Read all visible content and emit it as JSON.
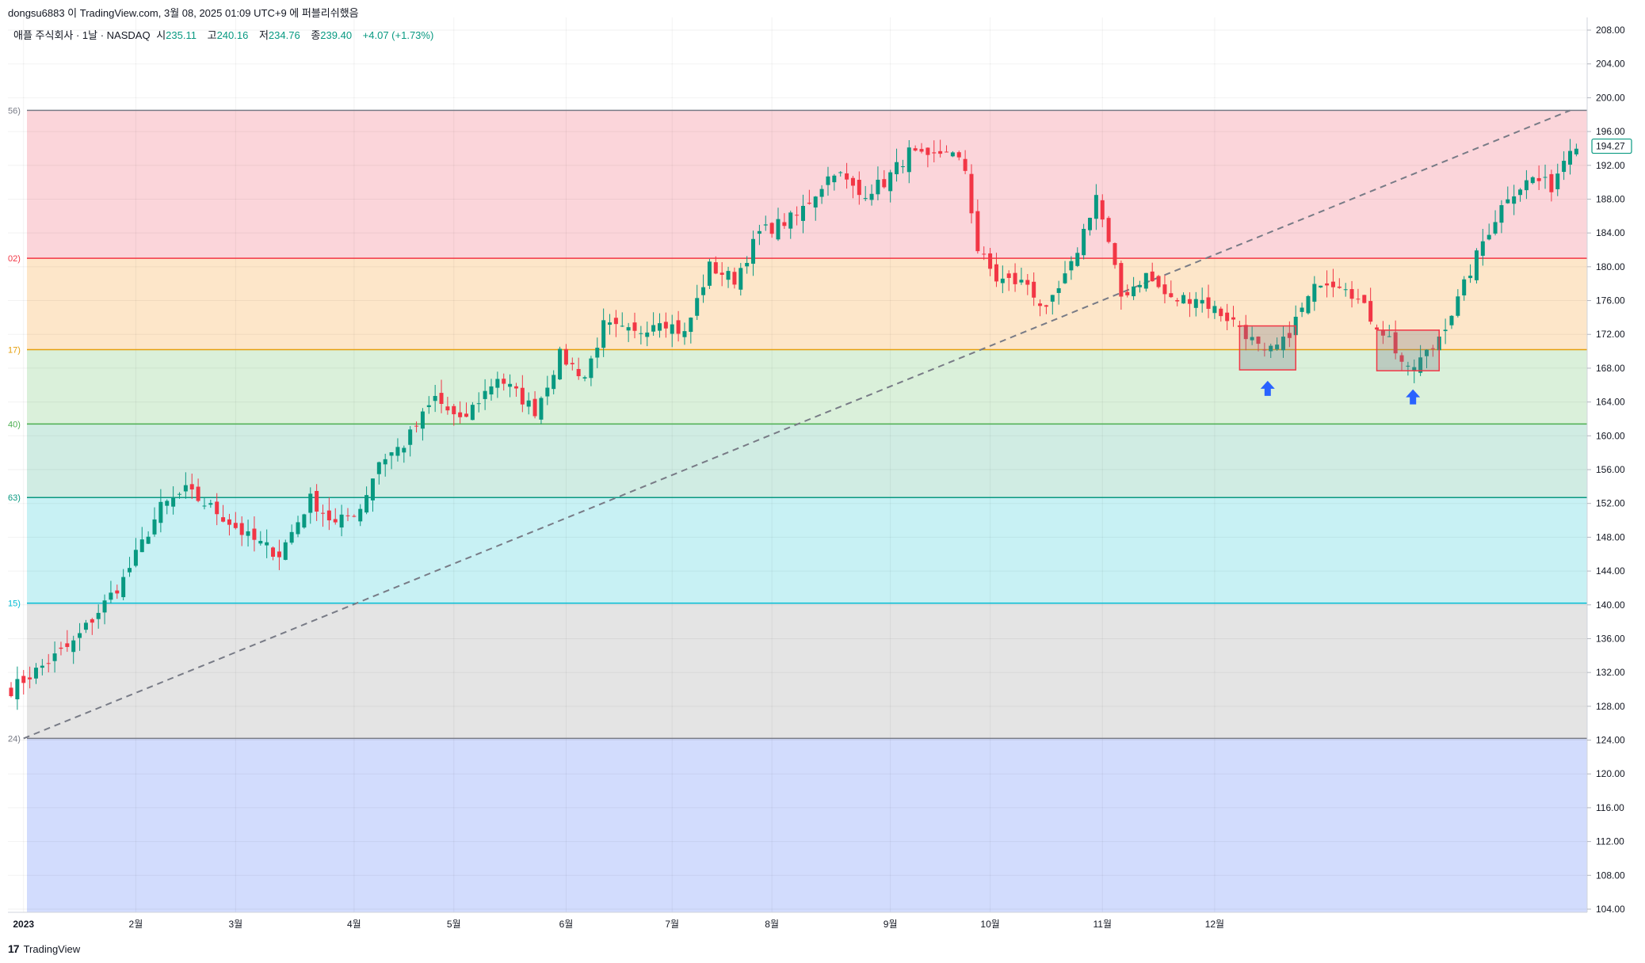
{
  "header": {
    "publisher_line": "dongsu6883 이 TradingView.com, 3월 08, 2025 01:09 UTC+9 에 퍼블리쉬했음"
  },
  "legend": {
    "symbol": "애플 주식회사 · 1날 · NASDAQ",
    "open_label": "시",
    "open": "235.11",
    "high_label": "고",
    "high": "240.16",
    "low_label": "저",
    "low": "234.76",
    "close_label": "종",
    "close": "239.40",
    "change": "+4.07 (+1.73%)",
    "value_color": "#089981"
  },
  "footer": {
    "brand": "TradingView",
    "logo_glyph": "17"
  },
  "chart_data": {
    "type": "candlestick",
    "ylim": [
      104,
      208
    ],
    "y_ticks": [
      "208.00",
      "204.00",
      "200.00",
      "196.00",
      "192.00",
      "188.00",
      "184.00",
      "180.00",
      "176.00",
      "172.00",
      "168.00",
      "164.00",
      "160.00",
      "156.00",
      "152.00",
      "148.00",
      "144.00",
      "140.00",
      "136.00",
      "132.00",
      "128.00",
      "124.00",
      "120.00",
      "116.00",
      "112.00",
      "108.00",
      "104.00"
    ],
    "x_ticks": [
      "2023",
      "2월",
      "3월",
      "4월",
      "5월",
      "6월",
      "7월",
      "8월",
      "9월",
      "10월",
      "11월",
      "12월"
    ],
    "last_price": "194.27",
    "up_color": "#089981",
    "down_color": "#f23645",
    "fib_levels": [
      {
        "label": "56)",
        "price": 198.5,
        "color": "#787b86",
        "fill": "#fbd5da"
      },
      {
        "label": "02)",
        "price": 181.0,
        "color": "#f23645",
        "fill": "#fde6c9"
      },
      {
        "label": "17)",
        "price": 170.2,
        "color": "#e5a00d",
        "fill": "#daf0da"
      },
      {
        "label": "40)",
        "price": 161.4,
        "color": "#4caf50",
        "fill": "#d0ece3"
      },
      {
        "label": "63)",
        "price": 152.7,
        "color": "#089981",
        "fill": "#c8f1f4"
      },
      {
        "label": "15)",
        "price": 140.2,
        "color": "#00bcd4",
        "fill": "#e4e4e4"
      },
      {
        "label": "24)",
        "price": 124.2,
        "color": "#787b86",
        "fill": "#d2dcfd"
      }
    ],
    "trendline": {
      "from_bar": 2,
      "from_price": 124.2,
      "to_bar": 250,
      "to_price": 198.5
    },
    "highlight_boxes": [
      {
        "from_bar": 197,
        "to_bar": 206,
        "low": 167.8,
        "high": 173.0
      },
      {
        "from_bar": 219,
        "to_bar": 229,
        "low": 167.7,
        "high": 172.5
      }
    ],
    "arrows": [
      {
        "bar": 201.5,
        "price": 166.5
      },
      {
        "bar": 224.8,
        "price": 165.5
      }
    ],
    "anchors": [
      {
        "i": 0,
        "c": 130.0
      },
      {
        "i": 10,
        "c": 135.5
      },
      {
        "i": 18,
        "c": 143.0
      },
      {
        "i": 24,
        "c": 151.5
      },
      {
        "i": 28,
        "c": 153.5
      },
      {
        "i": 33,
        "c": 151.0
      },
      {
        "i": 38,
        "c": 148.0
      },
      {
        "i": 43,
        "c": 146.0
      },
      {
        "i": 48,
        "c": 152.5
      },
      {
        "i": 52,
        "c": 149.5
      },
      {
        "i": 56,
        "c": 151.5
      },
      {
        "i": 59,
        "c": 157.0
      },
      {
        "i": 63,
        "c": 159.0
      },
      {
        "i": 68,
        "c": 164.5
      },
      {
        "i": 72,
        "c": 161.5
      },
      {
        "i": 78,
        "c": 167.0
      },
      {
        "i": 84,
        "c": 163.0
      },
      {
        "i": 88,
        "c": 169.5
      },
      {
        "i": 92,
        "c": 167.0
      },
      {
        "i": 95,
        "c": 173.0
      },
      {
        "i": 100,
        "c": 172.0
      },
      {
        "i": 104,
        "c": 174.0
      },
      {
        "i": 108,
        "c": 172.0
      },
      {
        "i": 112,
        "c": 180.0
      },
      {
        "i": 116,
        "c": 178.5
      },
      {
        "i": 120,
        "c": 184.0
      },
      {
        "i": 126,
        "c": 186.0
      },
      {
        "i": 132,
        "c": 191.5
      },
      {
        "i": 136,
        "c": 188.5
      },
      {
        "i": 140,
        "c": 190.0
      },
      {
        "i": 144,
        "c": 193.5
      },
      {
        "i": 147,
        "c": 192.5
      },
      {
        "i": 150,
        "c": 194.0
      },
      {
        "i": 153,
        "c": 191.5
      },
      {
        "i": 155,
        "c": 182.0
      },
      {
        "i": 158,
        "c": 178.5
      },
      {
        "i": 163,
        "c": 178.0
      },
      {
        "i": 166,
        "c": 174.5
      },
      {
        "i": 170,
        "c": 180.0
      },
      {
        "i": 174,
        "c": 188.5
      },
      {
        "i": 178,
        "c": 176.5
      },
      {
        "i": 182,
        "c": 179.0
      },
      {
        "i": 186,
        "c": 176.0
      },
      {
        "i": 190,
        "c": 176.5
      },
      {
        "i": 194,
        "c": 174.5
      },
      {
        "i": 197,
        "c": 173.0
      },
      {
        "i": 201,
        "c": 169.5
      },
      {
        "i": 204,
        "c": 171.0
      },
      {
        "i": 207,
        "c": 175.0
      },
      {
        "i": 210,
        "c": 178.5
      },
      {
        "i": 214,
        "c": 178.0
      },
      {
        "i": 218,
        "c": 174.0
      },
      {
        "i": 221,
        "c": 171.5
      },
      {
        "i": 224,
        "c": 167.5
      },
      {
        "i": 228,
        "c": 170.5
      },
      {
        "i": 232,
        "c": 176.0
      },
      {
        "i": 236,
        "c": 183.0
      },
      {
        "i": 240,
        "c": 188.5
      },
      {
        "i": 244,
        "c": 190.5
      },
      {
        "i": 247,
        "c": 189.5
      },
      {
        "i": 250,
        "c": 194.5
      }
    ]
  }
}
